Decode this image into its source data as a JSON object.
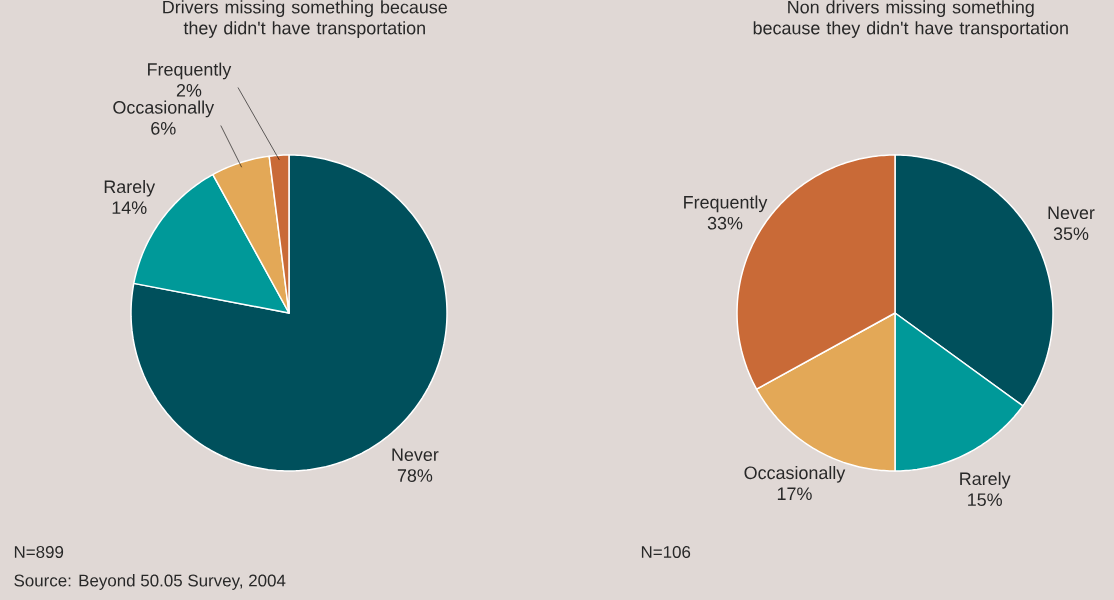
{
  "chart_data": [
    {
      "type": "pie",
      "title": "Drivers missing something because they didn't have transportation",
      "categories": [
        "Never",
        "Rarely",
        "Occasionally",
        "Frequently"
      ],
      "values": [
        78,
        14,
        6,
        2
      ],
      "value_labels": [
        "78%",
        "14%",
        "6%",
        "2%"
      ],
      "colors": [
        "#00505c",
        "#009999",
        "#e3a857",
        "#c96a37"
      ],
      "annotations": [
        "N=899",
        "Source: Beyond 50.05 Survey, 2004"
      ]
    },
    {
      "type": "pie",
      "title": "Non drivers missing something because they didn't have transportation",
      "categories": [
        "Never",
        "Rarely",
        "Occasionally",
        "Frequently"
      ],
      "values": [
        35,
        15,
        17,
        33
      ],
      "value_labels": [
        "35%",
        "15%",
        "17%",
        "33%"
      ],
      "colors": [
        "#00505c",
        "#009999",
        "#e3a857",
        "#c96a37"
      ],
      "annotations": [
        "N=106"
      ]
    }
  ]
}
